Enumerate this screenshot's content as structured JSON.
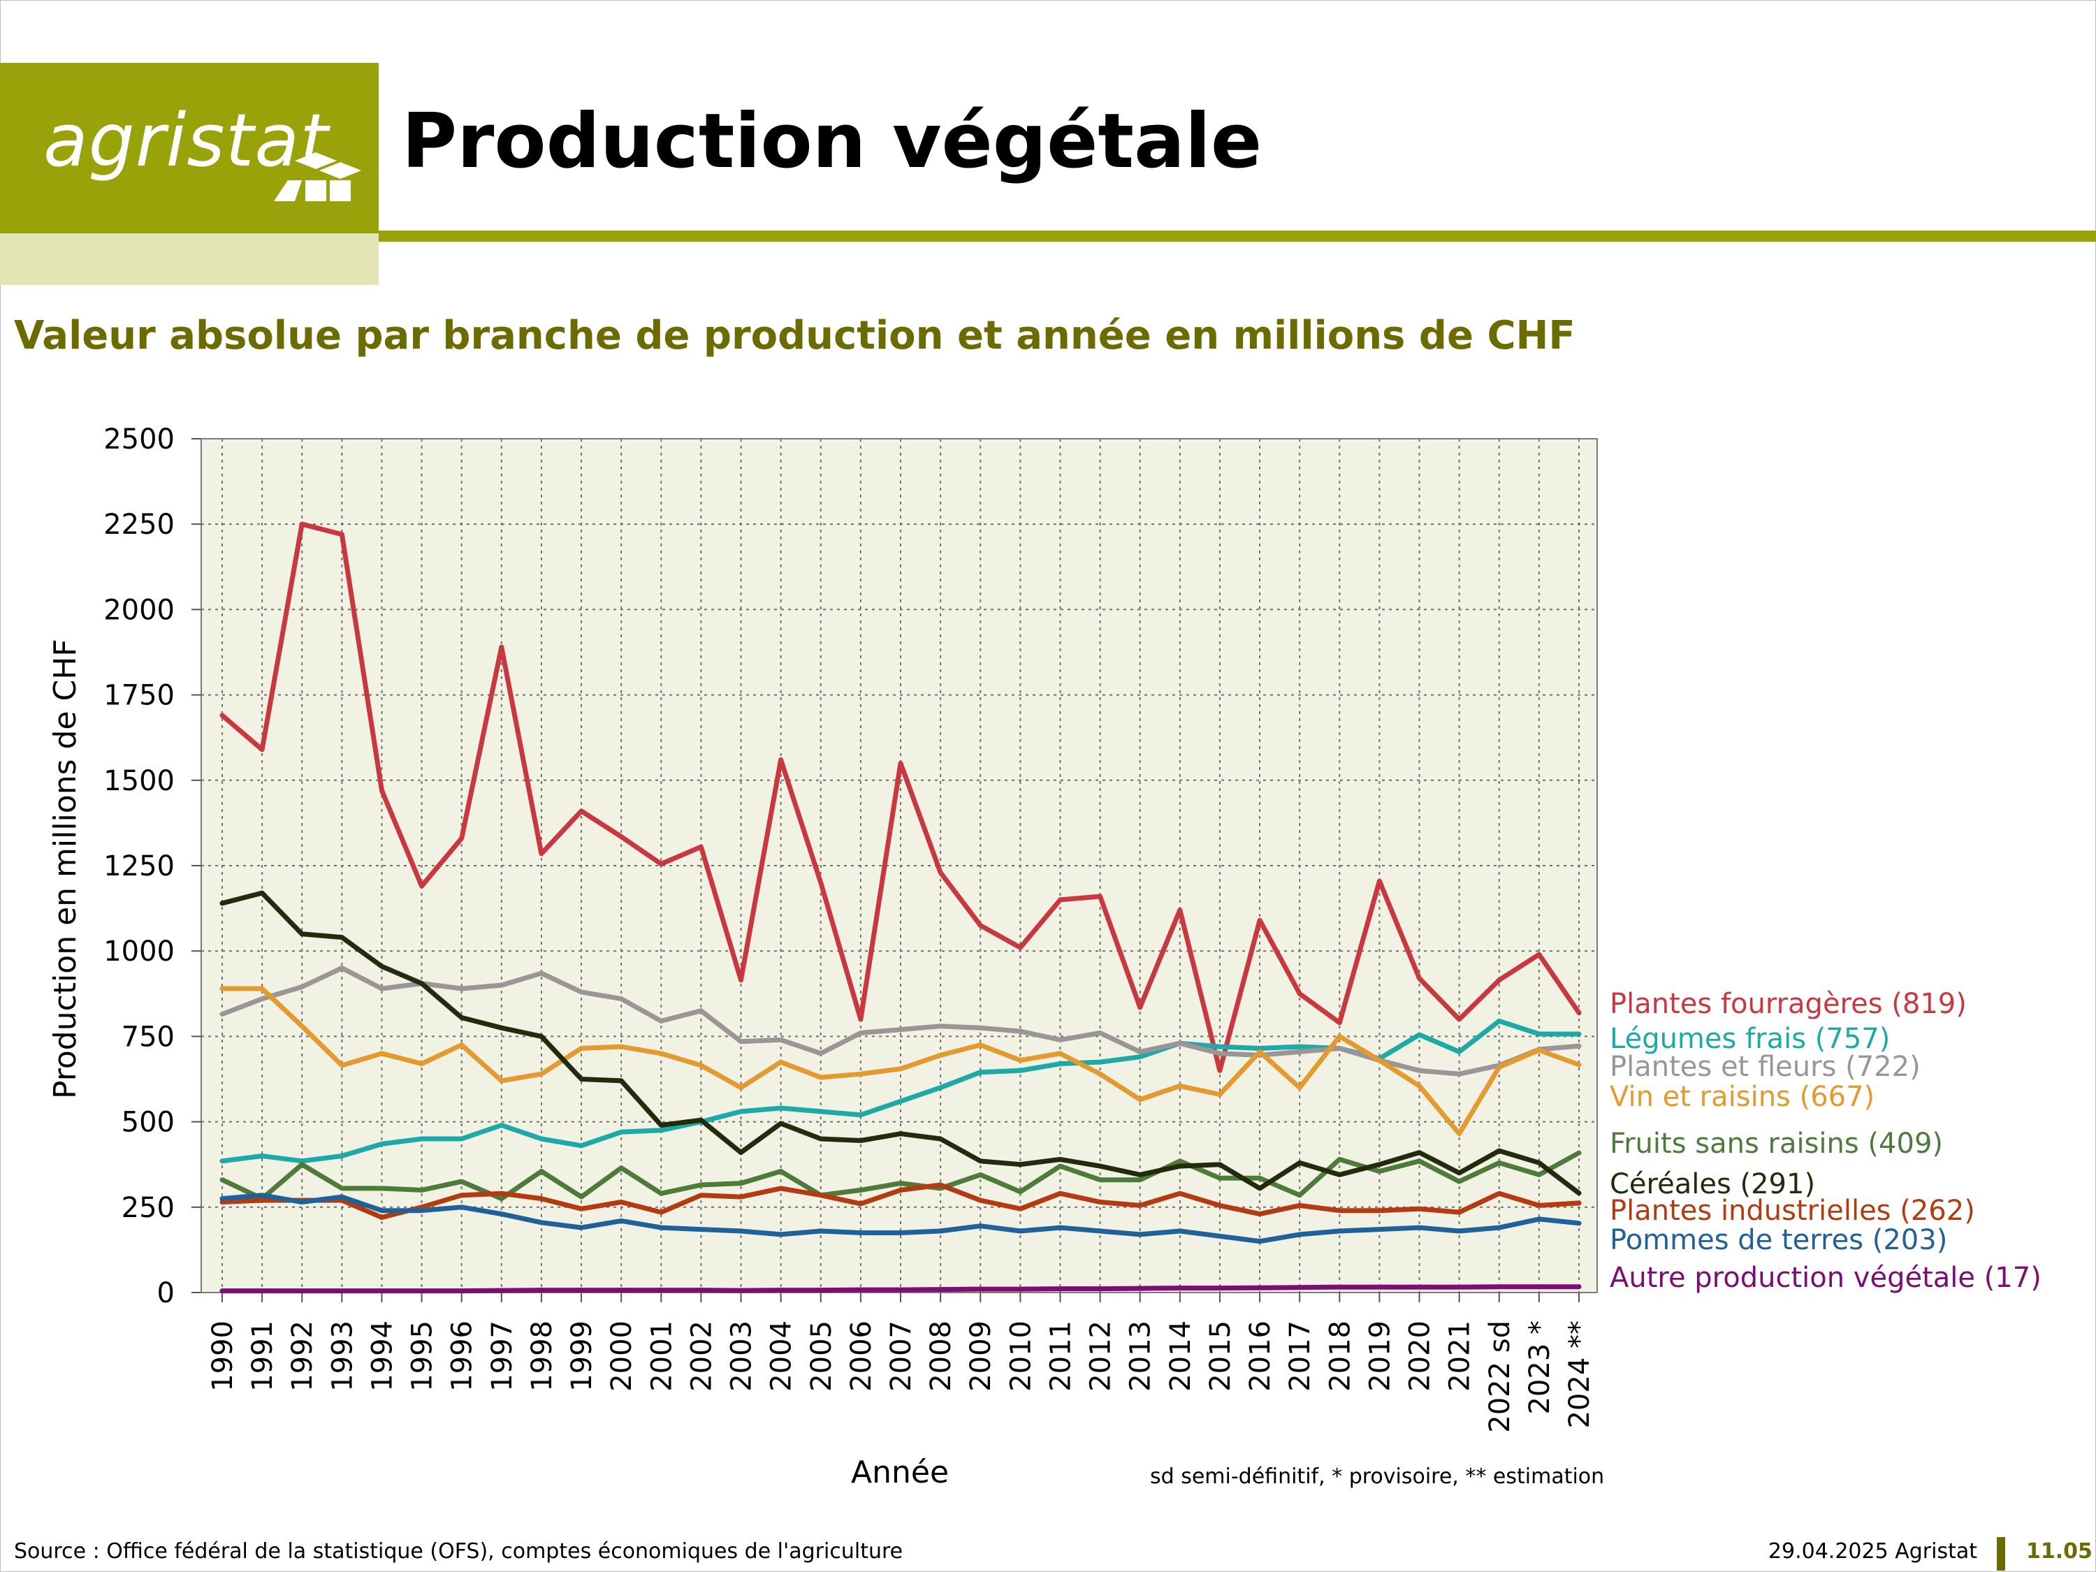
{
  "header": {
    "logo_text": "agristat",
    "title": "Production végétale",
    "subtitle": "Valeur absolue par branche de production et année en millions de CHF"
  },
  "colors": {
    "brand": "#9aa20a",
    "brand_light": "#e3e6b4",
    "subtitle": "#6b6b00",
    "plot_bg": "#f2f2e4"
  },
  "chart_data": {
    "type": "line",
    "xlabel": "Année",
    "ylabel": "Production en millions de CHF",
    "ylim": [
      0,
      2500
    ],
    "yticks": [
      0,
      250,
      500,
      750,
      1000,
      1250,
      1500,
      1750,
      2000,
      2250,
      2500
    ],
    "grid": true,
    "legend_placement": "right",
    "categories": [
      "1990",
      "1991",
      "1992",
      "1993",
      "1994",
      "1995",
      "1996",
      "1997",
      "1998",
      "1999",
      "2000",
      "2001",
      "2002",
      "2003",
      "2004",
      "2005",
      "2006",
      "2007",
      "2008",
      "2009",
      "2010",
      "2011",
      "2012",
      "2013",
      "2014",
      "2015",
      "2016",
      "2017",
      "2018",
      "2019",
      "2020",
      "2021",
      "2022 sd",
      "2023 *",
      "2024 **"
    ],
    "note": "sd semi-définitif, * provisoire, ** estimation",
    "series": [
      {
        "name": "Plantes fourragères (819)",
        "color": "#c8393f",
        "values": [
          1690,
          1590,
          2250,
          2220,
          1470,
          1190,
          1330,
          1890,
          1285,
          1410,
          1335,
          1255,
          1305,
          915,
          1560,
          1200,
          800,
          1550,
          1230,
          1075,
          1010,
          1150,
          1160,
          835,
          1120,
          650,
          1090,
          875,
          790,
          1205,
          920,
          800,
          915,
          990,
          819
        ]
      },
      {
        "name": "Légumes frais (757)",
        "color": "#1ca9a8",
        "values": [
          385,
          400,
          385,
          400,
          435,
          450,
          450,
          490,
          450,
          430,
          470,
          475,
          500,
          530,
          540,
          530,
          520,
          560,
          600,
          645,
          650,
          670,
          675,
          690,
          730,
          720,
          715,
          720,
          715,
          685,
          755,
          705,
          795,
          757,
          757
        ]
      },
      {
        "name": "Plantes et fleurs (722)",
        "color": "#9b9595",
        "values": [
          815,
          860,
          895,
          950,
          890,
          905,
          890,
          900,
          935,
          880,
          860,
          795,
          825,
          735,
          740,
          700,
          760,
          770,
          780,
          775,
          765,
          740,
          760,
          705,
          730,
          700,
          695,
          705,
          715,
          680,
          650,
          640,
          665,
          712,
          722
        ]
      },
      {
        "name": "Vin et raisins (667)",
        "color": "#e39a2e",
        "values": [
          890,
          890,
          780,
          665,
          700,
          670,
          725,
          620,
          640,
          715,
          720,
          700,
          665,
          600,
          675,
          630,
          640,
          655,
          695,
          725,
          680,
          700,
          640,
          565,
          605,
          580,
          705,
          600,
          750,
          680,
          605,
          465,
          660,
          710,
          667
        ]
      },
      {
        "name": "Fruits sans raisins  (409)",
        "color": "#4e7a3a",
        "values": [
          330,
          275,
          375,
          305,
          305,
          300,
          325,
          275,
          355,
          280,
          365,
          290,
          315,
          320,
          355,
          285,
          300,
          320,
          305,
          345,
          295,
          370,
          330,
          330,
          385,
          335,
          335,
          285,
          390,
          355,
          385,
          325,
          380,
          345,
          409
        ]
      },
      {
        "name": "Céréales (291)",
        "color": "#232b0d",
        "values": [
          1140,
          1170,
          1050,
          1040,
          955,
          905,
          805,
          775,
          750,
          625,
          620,
          490,
          505,
          410,
          495,
          450,
          445,
          465,
          450,
          385,
          375,
          390,
          370,
          345,
          370,
          375,
          305,
          380,
          345,
          375,
          410,
          350,
          415,
          380,
          291
        ]
      },
      {
        "name": "Plantes industrielles (262)",
        "color": "#b33b12",
        "values": [
          265,
          270,
          270,
          270,
          220,
          250,
          285,
          290,
          275,
          245,
          265,
          235,
          285,
          280,
          305,
          285,
          260,
          300,
          315,
          270,
          245,
          290,
          265,
          255,
          290,
          255,
          230,
          255,
          240,
          240,
          245,
          235,
          290,
          255,
          262
        ]
      },
      {
        "name": "Pommes de terres (203)",
        "color": "#20619a",
        "values": [
          275,
          285,
          265,
          280,
          240,
          240,
          250,
          230,
          205,
          190,
          210,
          190,
          185,
          180,
          170,
          180,
          175,
          175,
          180,
          195,
          180,
          190,
          180,
          170,
          180,
          165,
          150,
          170,
          180,
          185,
          190,
          180,
          190,
          215,
          203
        ]
      },
      {
        "name": "Autre production végétale (17)",
        "color": "#7b0d73",
        "values": [
          5,
          5,
          5,
          5,
          5,
          5,
          5,
          6,
          7,
          7,
          7,
          7,
          7,
          6,
          7,
          7,
          8,
          8,
          9,
          10,
          10,
          11,
          11,
          12,
          13,
          13,
          14,
          15,
          16,
          16,
          16,
          16,
          17,
          17,
          17
        ]
      }
    ]
  },
  "footer": {
    "source": "Source : Office fédéral de la statistique (OFS), comptes économiques de l'agriculture",
    "date": "29.04.2025 Agristat",
    "page_number": "11.05"
  }
}
